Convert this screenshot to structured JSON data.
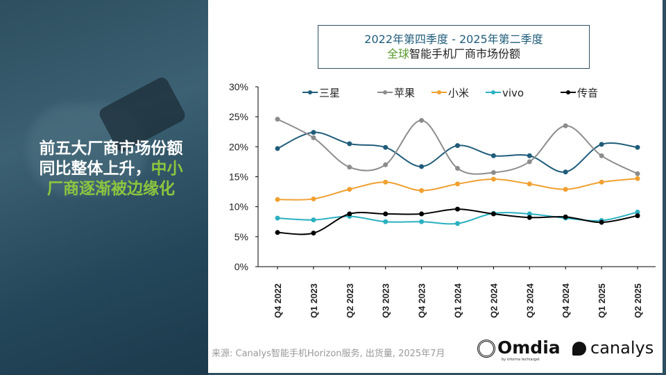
{
  "headline": {
    "line1": "前五大厂商市场份额",
    "line2a": "同比整体上升，",
    "line2b": "中小",
    "line3": "厂商逐渐被边缘化"
  },
  "title": {
    "line1": "2022年第四季度 -  2025年第二季度",
    "line2a": "全球",
    "line2b": "智能手机厂商市场份额"
  },
  "source": "来源: Canalys智能手机Horizon服务, 出货量, 2025年7月",
  "logos": {
    "omdia": "Omdia",
    "omdia_sub": "by informa techtarget",
    "canalys": "canalys"
  },
  "chart_data": {
    "type": "line",
    "categories": [
      "Q4 2022",
      "Q1 2023",
      "Q2 2023",
      "Q3 2023",
      "Q4 2023",
      "Q1 2024",
      "Q2 2024",
      "Q3 2024",
      "Q4 2024",
      "Q1 2025",
      "Q2 2025"
    ],
    "ylim": [
      0,
      30
    ],
    "yticks": [
      "0%",
      "5%",
      "10%",
      "15%",
      "20%",
      "25%",
      "30%"
    ],
    "legend_position": "top",
    "grid": false,
    "series": [
      {
        "name": "三星",
        "color": "#1f5c7a",
        "values": [
          19.7,
          22.4,
          20.5,
          19.9,
          16.7,
          20.2,
          18.5,
          18.5,
          15.8,
          20.4,
          19.9
        ]
      },
      {
        "name": "苹果",
        "color": "#8c8c8c",
        "values": [
          24.6,
          21.5,
          16.6,
          17.0,
          24.4,
          16.4,
          15.7,
          17.5,
          23.5,
          18.5,
          15.5
        ]
      },
      {
        "name": "小米",
        "color": "#f0a030",
        "values": [
          11.2,
          11.3,
          12.9,
          14.1,
          12.7,
          13.8,
          14.6,
          13.8,
          12.9,
          14.1,
          14.7
        ]
      },
      {
        "name": "vivo",
        "color": "#2ab0c0",
        "values": [
          8.1,
          7.8,
          8.4,
          7.5,
          7.5,
          7.2,
          8.9,
          8.8,
          8.1,
          7.7,
          9.1
        ]
      },
      {
        "name": "传音",
        "color": "#000000",
        "values": [
          5.7,
          5.6,
          8.8,
          8.8,
          8.8,
          9.6,
          8.8,
          8.2,
          8.3,
          7.4,
          8.5
        ]
      }
    ]
  }
}
